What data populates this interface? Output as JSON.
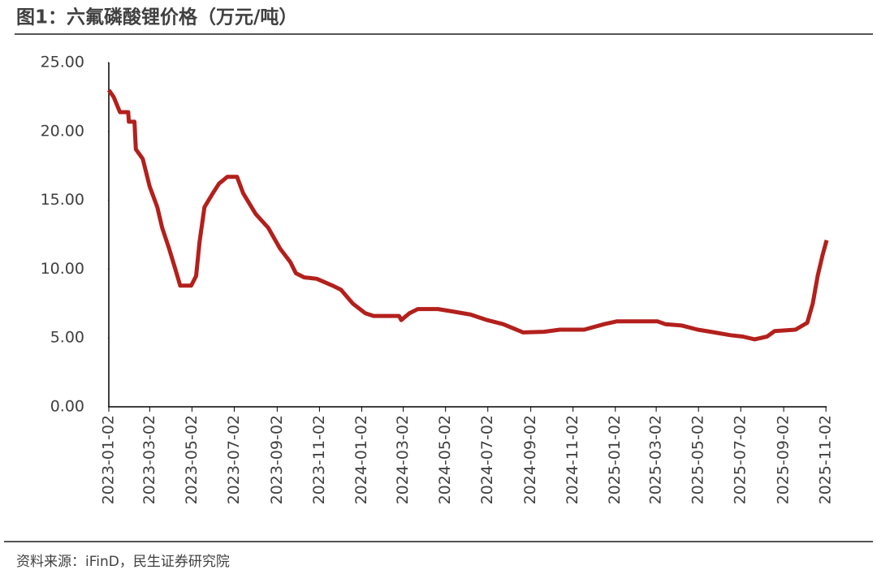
{
  "chart_data": {
    "type": "line",
    "title": "图1：六氟磷酸锂价格（万元/吨）",
    "source": "资料来源：iFinD，民生证券研究院",
    "x": [
      "2023-01-02",
      "2023-01-09",
      "2023-01-18",
      "2023-01-30",
      "2023-01-31",
      "2023-02-08",
      "2023-02-10",
      "2023-02-20",
      "2023-03-02",
      "2023-03-13",
      "2023-03-20",
      "2023-03-30",
      "2023-04-08",
      "2023-04-15",
      "2023-05-01",
      "2023-05-08",
      "2023-05-13",
      "2023-05-20",
      "2023-06-01",
      "2023-06-10",
      "2023-06-22",
      "2023-07-06",
      "2023-07-15",
      "2023-08-02",
      "2023-08-20",
      "2023-09-06",
      "2023-09-21",
      "2023-09-29",
      "2023-10-11",
      "2023-10-29",
      "2023-11-21",
      "2023-12-03",
      "2023-12-20",
      "2024-01-07",
      "2024-01-19",
      "2024-02-25",
      "2024-02-28",
      "2024-03-11",
      "2024-03-23",
      "2024-04-21",
      "2024-05-15",
      "2024-06-07",
      "2024-07-01",
      "2024-07-24",
      "2024-08-22",
      "2024-09-21",
      "2024-10-14",
      "2024-11-18",
      "2024-12-17",
      "2025-01-04",
      "2025-03-04",
      "2025-03-15",
      "2025-04-08",
      "2025-05-01",
      "2025-05-25",
      "2025-06-17",
      "2025-07-05",
      "2025-07-22",
      "2025-08-09",
      "2025-08-20",
      "2025-09-19",
      "2025-10-06",
      "2025-10-14",
      "2025-10-21",
      "2025-10-28",
      "2025-11-03"
    ],
    "series": [
      {
        "name": "六氟磷酸锂价格",
        "color": "#b3201c",
        "values": [
          23.0,
          22.5,
          21.4,
          21.4,
          20.7,
          20.7,
          18.7,
          18.0,
          16.0,
          14.5,
          13.0,
          11.5,
          10.0,
          8.8,
          8.8,
          9.5,
          12.0,
          14.5,
          15.5,
          16.2,
          16.7,
          16.7,
          15.5,
          14.0,
          13.0,
          11.5,
          10.5,
          9.7,
          9.4,
          9.3,
          8.8,
          8.5,
          7.5,
          6.8,
          6.6,
          6.6,
          6.3,
          6.8,
          7.1,
          7.1,
          6.9,
          6.7,
          6.3,
          6.0,
          5.4,
          5.45,
          5.6,
          5.6,
          6.0,
          6.2,
          6.2,
          6.0,
          5.9,
          5.6,
          5.4,
          5.2,
          5.1,
          4.9,
          5.1,
          5.5,
          5.6,
          6.1,
          7.5,
          9.5,
          11.0,
          12.1
        ]
      }
    ],
    "xlim": [
      "2023-01-02",
      "2025-11-03"
    ],
    "xticks": [
      "2023-01-02",
      "2023-03-02",
      "2023-05-02",
      "2023-07-02",
      "2023-09-02",
      "2023-11-02",
      "2024-01-02",
      "2024-03-02",
      "2024-05-02",
      "2024-07-02",
      "2024-09-02",
      "2024-11-02",
      "2025-01-02",
      "2025-03-02",
      "2025-05-02",
      "2025-07-02",
      "2025-09-02",
      "2025-11-02"
    ],
    "ylim": [
      0,
      25
    ],
    "yticks": [
      {
        "value": 0,
        "label": "0.00"
      },
      {
        "value": 5,
        "label": "5.00"
      },
      {
        "value": 10,
        "label": "10.00"
      },
      {
        "value": 15,
        "label": "15.00"
      },
      {
        "value": 20,
        "label": "20.00"
      },
      {
        "value": 25,
        "label": "25.00"
      }
    ],
    "grid": false
  }
}
